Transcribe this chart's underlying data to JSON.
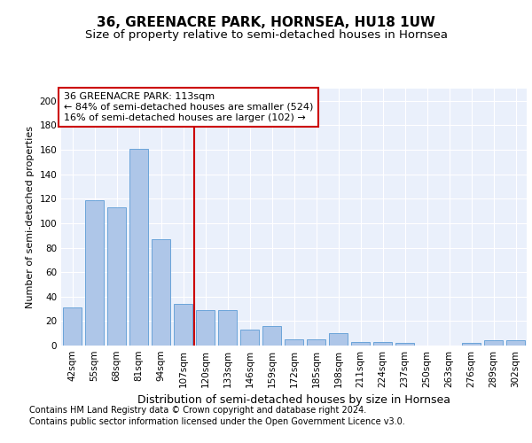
{
  "title": "36, GREENACRE PARK, HORNSEA, HU18 1UW",
  "subtitle": "Size of property relative to semi-detached houses in Hornsea",
  "xlabel": "Distribution of semi-detached houses by size in Hornsea",
  "ylabel": "Number of semi-detached properties",
  "categories": [
    "42sqm",
    "55sqm",
    "68sqm",
    "81sqm",
    "94sqm",
    "107sqm",
    "120sqm",
    "133sqm",
    "146sqm",
    "159sqm",
    "172sqm",
    "185sqm",
    "198sqm",
    "211sqm",
    "224sqm",
    "237sqm",
    "250sqm",
    "263sqm",
    "276sqm",
    "289sqm",
    "302sqm"
  ],
  "values": [
    31,
    119,
    113,
    161,
    87,
    34,
    29,
    29,
    13,
    16,
    5,
    5,
    10,
    3,
    3,
    2,
    0,
    0,
    2,
    4,
    4
  ],
  "bar_color": "#aec6e8",
  "bar_edge_color": "#5b9bd5",
  "marker_index": 6,
  "annotation_text_line1": "36 GREENACRE PARK: 113sqm",
  "annotation_text_line2": "← 84% of semi-detached houses are smaller (524)",
  "annotation_text_line3": "16% of semi-detached houses are larger (102) →",
  "annotation_box_color": "#ffffff",
  "annotation_box_edge": "#cc0000",
  "vline_color": "#cc0000",
  "ylim": [
    0,
    210
  ],
  "yticks": [
    0,
    20,
    40,
    60,
    80,
    100,
    120,
    140,
    160,
    180,
    200
  ],
  "footer_line1": "Contains HM Land Registry data © Crown copyright and database right 2024.",
  "footer_line2": "Contains public sector information licensed under the Open Government Licence v3.0.",
  "background_color": "#eaf0fb",
  "fig_background": "#ffffff",
  "title_fontsize": 11,
  "subtitle_fontsize": 9.5,
  "xlabel_fontsize": 9,
  "ylabel_fontsize": 8,
  "tick_fontsize": 7.5,
  "annotation_fontsize": 8,
  "footer_fontsize": 7
}
